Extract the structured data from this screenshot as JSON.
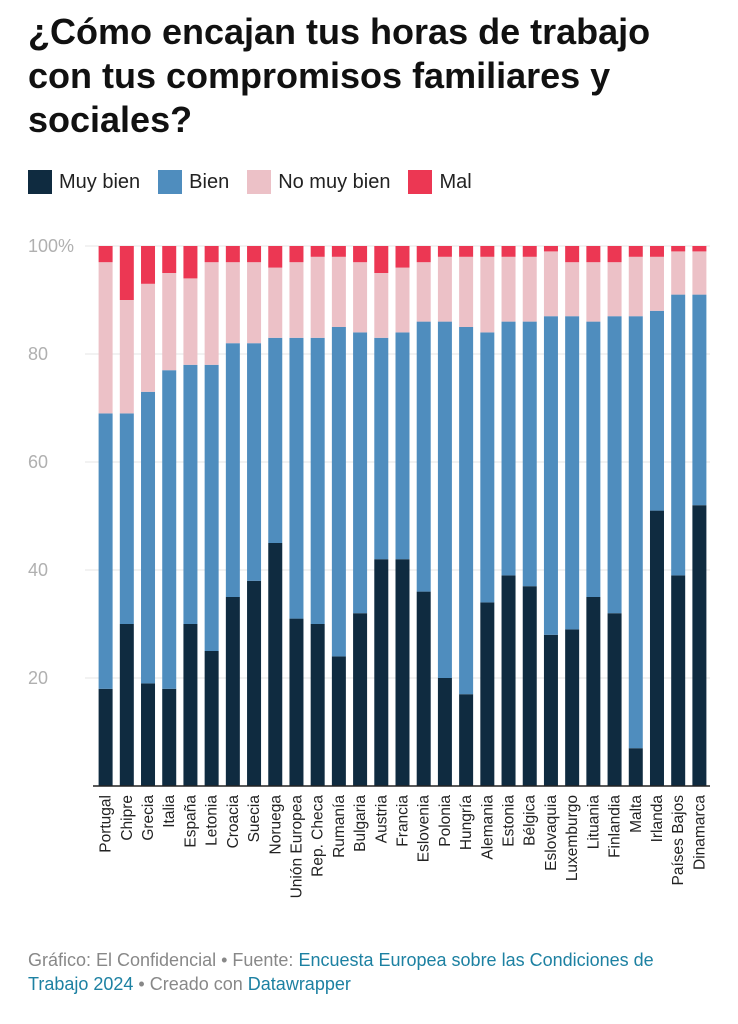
{
  "title": "¿Cómo encajan tus horas de trabajo con tus compromisos familiares y sociales?",
  "legend": [
    {
      "label": "Muy bien",
      "color": "#0f2b40"
    },
    {
      "label": "Bien",
      "color": "#4f8dbe"
    },
    {
      "label": "No muy bien",
      "color": "#ecc1c7"
    },
    {
      "label": "Mal",
      "color": "#ec3753"
    }
  ],
  "chart_data": {
    "type": "bar",
    "stacked": true,
    "title": "¿Cómo encajan tus horas de trabajo con tus compromisos familiares y sociales?",
    "ylim": [
      0,
      100
    ],
    "yticks": [
      20,
      40,
      60,
      80,
      100
    ],
    "ytick_labels": [
      "20",
      "40",
      "60",
      "80",
      "100%"
    ],
    "categories": [
      "Portugal",
      "Chipre",
      "Grecia",
      "Italia",
      "España",
      "Letonia",
      "Croacia",
      "Suecia",
      "Noruega",
      "Unión Europea",
      "Rep. Checa",
      "Rumanía",
      "Bulgaria",
      "Austria",
      "Francia",
      "Eslovenia",
      "Polonia",
      "Hungría",
      "Alemania",
      "Estonia",
      "Bélgica",
      "Eslovaquia",
      "Luxemburgo",
      "Lituania",
      "Finlandia",
      "Malta",
      "Irlanda",
      "Países Bajos",
      "Dinamarca"
    ],
    "series": [
      {
        "name": "Muy bien",
        "values": [
          18,
          30,
          19,
          18,
          30,
          25,
          35,
          38,
          45,
          31,
          30,
          24,
          32,
          42,
          42,
          36,
          20,
          17,
          34,
          39,
          37,
          28,
          29,
          35,
          32,
          7,
          51,
          39,
          52
        ]
      },
      {
        "name": "Bien",
        "values": [
          51,
          39,
          54,
          59,
          48,
          53,
          47,
          44,
          38,
          52,
          53,
          61,
          52,
          41,
          42,
          50,
          66,
          68,
          50,
          47,
          49,
          59,
          58,
          51,
          55,
          80,
          37,
          52,
          39
        ]
      },
      {
        "name": "No muy bien",
        "values": [
          28,
          21,
          20,
          18,
          16,
          19,
          15,
          15,
          13,
          14,
          15,
          13,
          13,
          12,
          12,
          11,
          12,
          13,
          14,
          12,
          12,
          12,
          10,
          11,
          10,
          11,
          10,
          8,
          8
        ]
      },
      {
        "name": "Mal",
        "values": [
          3,
          10,
          7,
          5,
          6,
          3,
          3,
          3,
          4,
          3,
          2,
          2,
          3,
          5,
          4,
          3,
          2,
          2,
          2,
          2,
          2,
          1,
          3,
          3,
          3,
          2,
          2,
          1,
          1
        ]
      }
    ]
  },
  "footer": {
    "prefix": "Gráfico: El Confidencial • Fuente: ",
    "source_link": "Encuesta Europea sobre las Condiciones de Trabajo 2024",
    "middle": " • Creado con ",
    "tool_link": "Datawrapper"
  }
}
